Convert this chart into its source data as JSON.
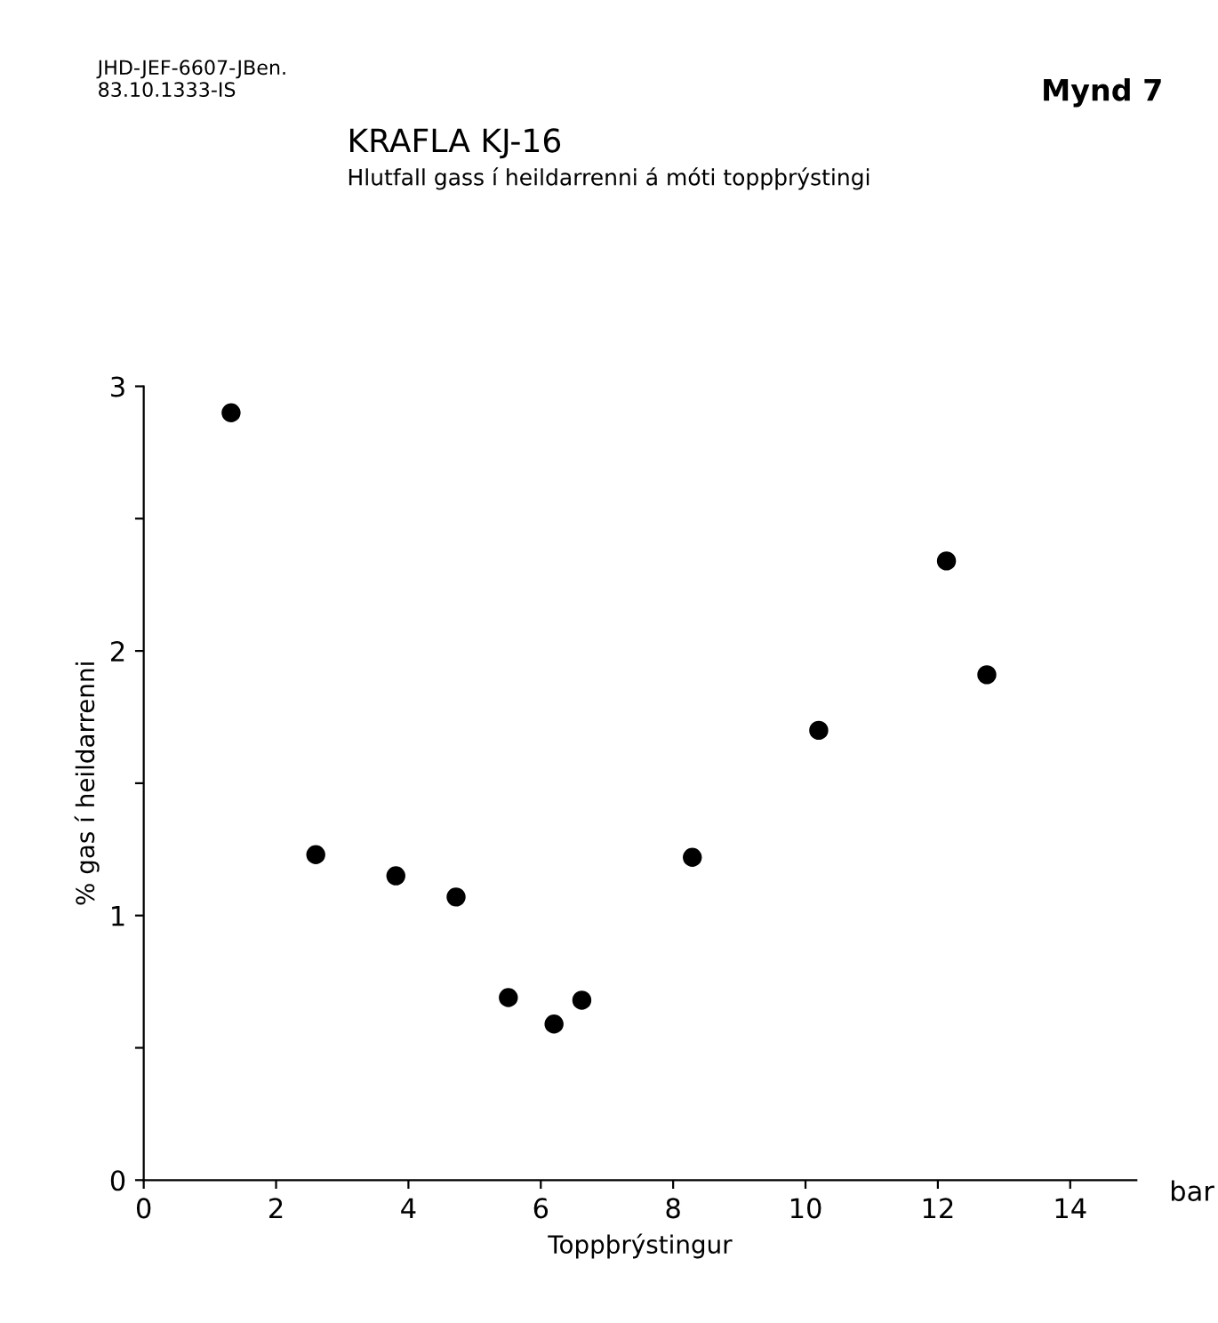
{
  "chart_data": {
    "type": "scatter",
    "title": "KRAFLA KJ-16",
    "subtitle": "Hlutfall gass í heildarrenni á móti toppþrýstingi",
    "xlabel": "Toppþrýstingur",
    "ylabel": "% gas í heildarrenni",
    "annotations": [
      "JHD-JEF-6607-JBen.\n83.10.1333-IS",
      "Mynd 7",
      "bar"
    ],
    "x": [
      1.32,
      2.6,
      3.81,
      4.72,
      5.51,
      6.2,
      6.62,
      8.29,
      10.2,
      12.13,
      12.74
    ],
    "values": [
      2.9,
      1.23,
      1.15,
      1.07,
      0.69,
      0.59,
      0.68,
      1.22,
      1.7,
      2.34,
      1.91
    ],
    "color": "#000000",
    "marker": "circle",
    "grid": false,
    "legend": false,
    "xlim": [
      0,
      15
    ],
    "xticks": [
      0,
      2,
      4,
      6,
      8,
      10,
      12,
      14
    ],
    "ylim": [
      0,
      3
    ],
    "yticks": [
      0,
      {
        "value": 0.5,
        "label": null
      },
      1,
      {
        "value": 1.5,
        "label": null
      },
      2,
      {
        "value": 2.5,
        "label": null
      },
      3
    ]
  }
}
